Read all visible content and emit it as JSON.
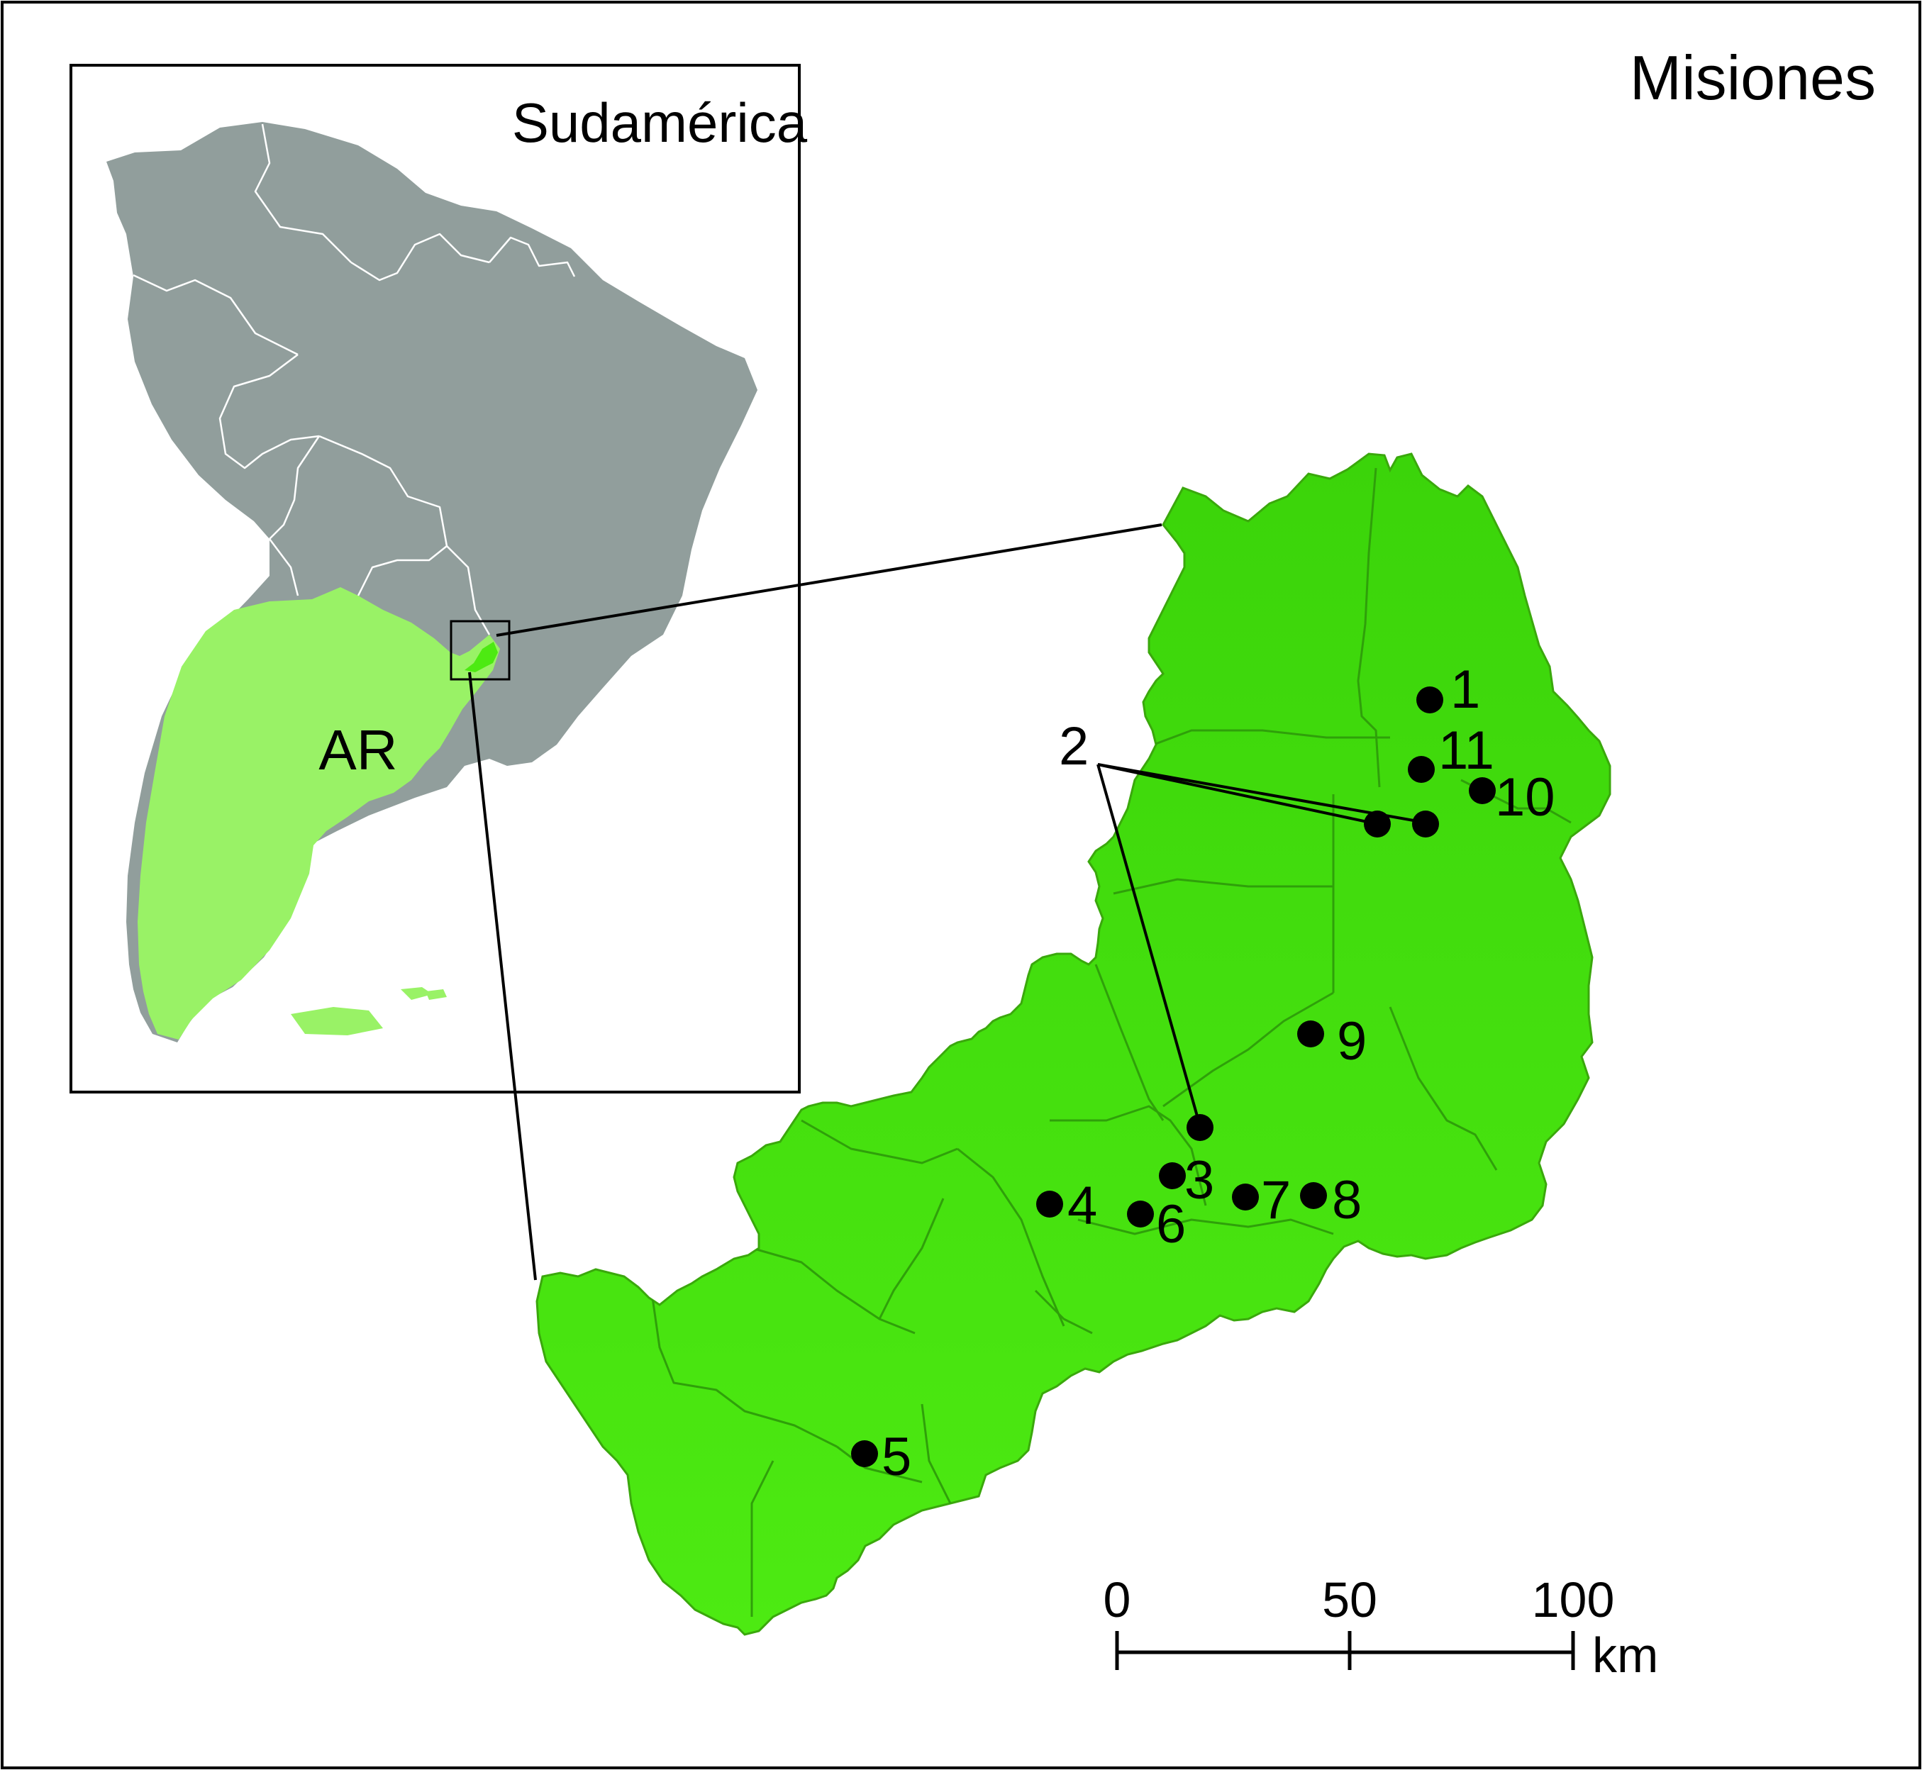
{
  "figure": {
    "region_title": "Misiones",
    "inset_title": "Sudamérica",
    "country_label": "AR"
  },
  "scale_bar": {
    "ticks": [
      "0",
      "50",
      "100"
    ],
    "unit": "km"
  },
  "sites": [
    {
      "label": "1"
    },
    {
      "label": "2"
    },
    {
      "label": "3"
    },
    {
      "label": "4"
    },
    {
      "label": "5"
    },
    {
      "label": "6"
    },
    {
      "label": "7"
    },
    {
      "label": "8"
    },
    {
      "label": "9"
    },
    {
      "label": "10"
    },
    {
      "label": "11"
    }
  ],
  "colors": {
    "continent": "#919e9c",
    "argentina": "#99f266",
    "misiones": "#4dea12",
    "department_light": "#6ef03a",
    "department_dark": "#3bd40a",
    "border": "#000000"
  }
}
